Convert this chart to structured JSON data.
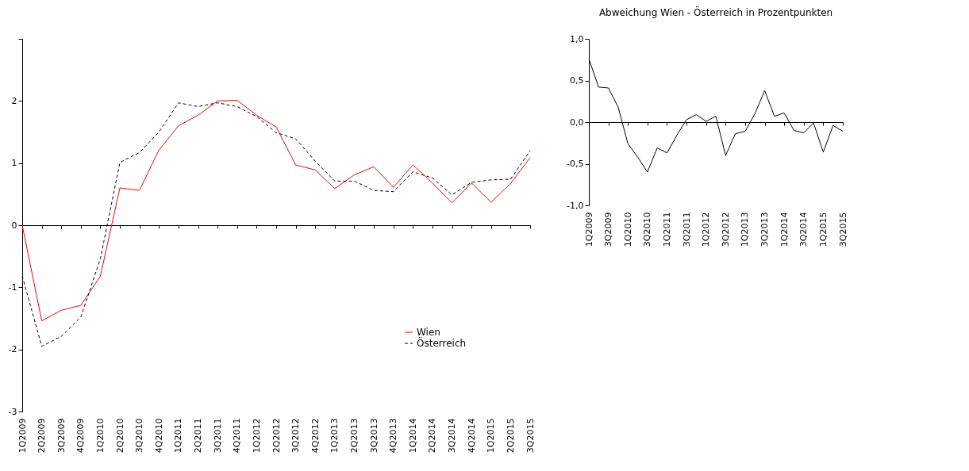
{
  "chart_data": [
    {
      "type": "line",
      "categories": [
        "1Q2009",
        "2Q2009",
        "3Q2009",
        "4Q2009",
        "1Q2010",
        "2Q2010",
        "3Q2010",
        "4Q2010",
        "1Q2011",
        "2Q2011",
        "3Q2011",
        "4Q2011",
        "1Q2012",
        "2Q2012",
        "3Q2012",
        "4Q2012",
        "1Q2013",
        "2Q2013",
        "3Q2013",
        "4Q2013",
        "1Q2014",
        "2Q2014",
        "3Q2014",
        "4Q2014",
        "1Q2015",
        "2Q2015",
        "3Q2015"
      ],
      "series": [
        {
          "name": "Wien",
          "color": "#ff0000",
          "line_style": "solid",
          "values": [
            0,
            -1.54,
            -1.37,
            -1.29,
            -0.82,
            0.6,
            0.56,
            1.21,
            1.6,
            1.77,
            2.0,
            2.01,
            1.77,
            1.58,
            0.97,
            0.89,
            0.59,
            0.81,
            0.94,
            0.61,
            0.97,
            0.68,
            0.36,
            0.68,
            0.37,
            0.67,
            1.09
          ]
        },
        {
          "name": "Österreich",
          "color": "#000000",
          "line_style": "dashed",
          "values": [
            -0.82,
            -1.95,
            -1.79,
            -1.48,
            -0.54,
            1.01,
            1.17,
            1.5,
            1.97,
            1.91,
            1.97,
            1.91,
            1.75,
            1.49,
            1.39,
            1.03,
            0.71,
            0.71,
            0.56,
            0.54,
            0.86,
            0.76,
            0.49,
            0.69,
            0.73,
            0.74,
            1.2
          ]
        }
      ],
      "ylim": [
        -3,
        3
      ],
      "yticks": [
        -3,
        -2,
        -1,
        0,
        1,
        2,
        {
          "value": 3,
          "label": null
        }
      ],
      "legend": "bottom right"
    },
    {
      "type": "line",
      "title": "Abweichung Wien - Österreich  in Prozentpunkten",
      "categories": [
        "1Q2009",
        null,
        "3Q2009",
        null,
        "1Q2010",
        null,
        "3Q2010",
        null,
        "1Q2011",
        null,
        "3Q2011",
        null,
        "1Q2012",
        null,
        "3Q2012",
        null,
        "1Q2013",
        null,
        "3Q2013",
        null,
        "1Q2014",
        null,
        "3Q2014",
        null,
        "1Q2015",
        null,
        "3Q2015"
      ],
      "series": [
        {
          "color": "#000000",
          "line_style": "solid",
          "values": [
            0.76,
            0.42,
            0.41,
            0.18,
            -0.26,
            -0.42,
            -0.6,
            -0.31,
            -0.37,
            -0.16,
            0.03,
            0.09,
            0.01,
            0.07,
            -0.4,
            -0.14,
            -0.11,
            0.1,
            0.38,
            0.07,
            0.11,
            -0.1,
            -0.13,
            -0.01,
            -0.36,
            -0.04,
            -0.11
          ]
        }
      ],
      "ylim": [
        -1,
        1
      ],
      "yticks": [
        {
          "value": -1,
          "label": "-1,0"
        },
        {
          "value": -0.5,
          "label": "-0,5"
        },
        {
          "value": 0,
          "label": "0,0"
        },
        {
          "value": 0.5,
          "label": "0,5"
        },
        {
          "value": 1,
          "label": "1,0"
        }
      ],
      "legend": false
    }
  ]
}
